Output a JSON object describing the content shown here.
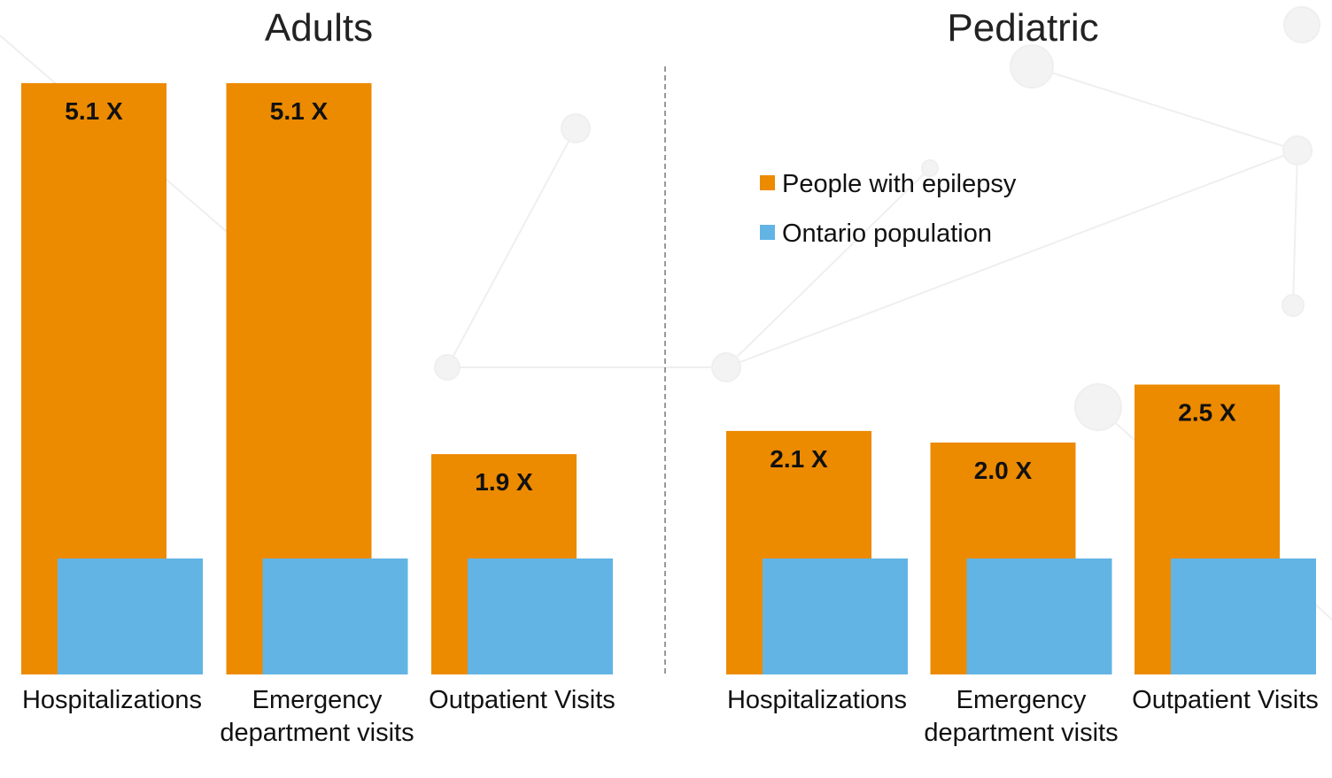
{
  "chart_data": [
    {
      "type": "bar",
      "title": "Adults",
      "categories": [
        "Hospitalizations",
        "Emergency department visits",
        "Outpatient Visits"
      ],
      "series": [
        {
          "color": "#ec8a00",
          "values": [
            5.1,
            5.1,
            1.9
          ],
          "value_labels": [
            "5.1 X",
            "5.1 X",
            "1.9 X"
          ]
        },
        {
          "color": "#62b4e4",
          "values": [
            1,
            1,
            1
          ]
        }
      ]
    },
    {
      "type": "bar",
      "title": "Pediatric",
      "categories": [
        "Hospitalizations",
        "Emergency department visits",
        "Outpatient Visits"
      ],
      "series": [
        {
          "name": "People with epilepsy",
          "color": "#ec8a00",
          "values": [
            2.1,
            2.0,
            2.5
          ],
          "value_labels": [
            "2.1 X",
            "2.0 X",
            "2.5 X"
          ]
        },
        {
          "name": "Ontario population",
          "color": "#62b4e4",
          "values": [
            1,
            1,
            1
          ]
        }
      ],
      "legend": "upper left"
    }
  ]
}
